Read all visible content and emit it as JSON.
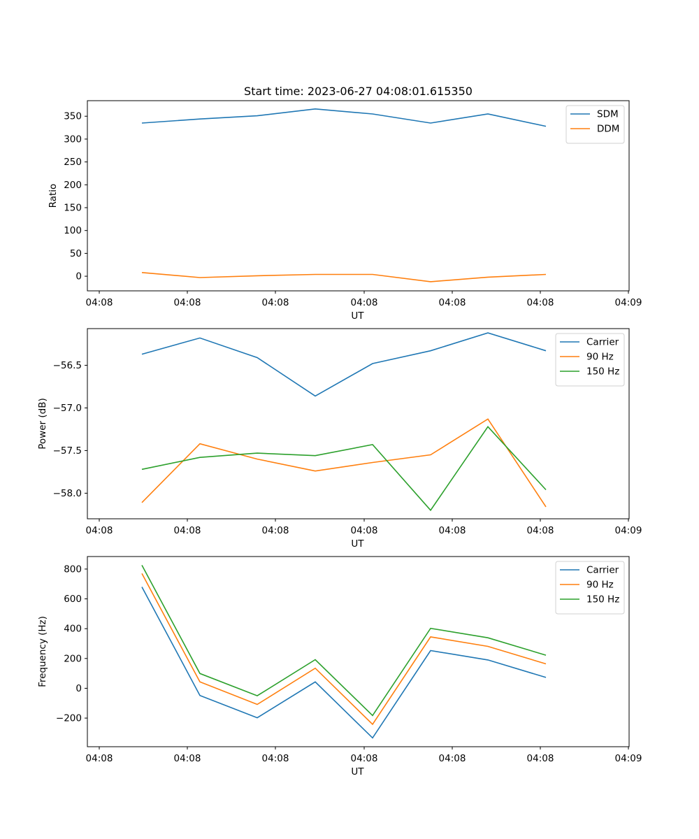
{
  "chart_data": [
    {
      "type": "line",
      "title": "Start time: 2023-06-27 04:08:01.615350",
      "xlabel": "UT",
      "ylabel": "Ratio",
      "x_ticks": [
        "04:08",
        "04:08",
        "04:08",
        "04:08",
        "04:08",
        "04:08",
        "04:09"
      ],
      "ylim": [
        -32,
        384
      ],
      "y_ticks": [
        0,
        50,
        100,
        150,
        200,
        250,
        300,
        350
      ],
      "legend_position": "top-right",
      "series": [
        {
          "name": "SDM",
          "color": "#1f77b4",
          "values": [
            335,
            344,
            351,
            366,
            355,
            335,
            355,
            328
          ]
        },
        {
          "name": "DDM",
          "color": "#ff7f0e",
          "values": [
            8,
            -3,
            1,
            4,
            4,
            -12,
            -2,
            4
          ]
        }
      ]
    },
    {
      "type": "line",
      "title": "",
      "xlabel": "UT",
      "ylabel": "Power (dB)",
      "x_ticks": [
        "04:08",
        "04:08",
        "04:08",
        "04:08",
        "04:08",
        "04:08",
        "04:09"
      ],
      "ylim": [
        -58.3,
        -56.07
      ],
      "y_ticks": [
        -58.0,
        -57.5,
        -57.0,
        -56.5
      ],
      "legend_position": "top-right",
      "series": [
        {
          "name": "Carrier",
          "color": "#1f77b4",
          "values": [
            -56.37,
            -56.18,
            -56.41,
            -56.86,
            -56.48,
            -56.33,
            -56.12,
            -56.33
          ]
        },
        {
          "name": "90 Hz",
          "color": "#ff7f0e",
          "values": [
            -58.11,
            -57.42,
            -57.6,
            -57.74,
            -57.64,
            -57.55,
            -57.13,
            -58.16
          ]
        },
        {
          "name": "150 Hz",
          "color": "#2ca02c",
          "values": [
            -57.72,
            -57.58,
            -57.53,
            -57.56,
            -57.43,
            -58.2,
            -57.22,
            -57.96
          ]
        }
      ]
    },
    {
      "type": "line",
      "title": "",
      "xlabel": "UT",
      "ylabel": "Frequency (Hz)",
      "x_ticks": [
        "04:08",
        "04:08",
        "04:08",
        "04:08",
        "04:08",
        "04:08",
        "04:09"
      ],
      "ylim": [
        -392,
        884
      ],
      "y_ticks": [
        -200,
        0,
        200,
        400,
        600,
        800
      ],
      "legend_position": "top-right",
      "series": [
        {
          "name": "Carrier",
          "color": "#1f77b4",
          "values": [
            680,
            -48,
            -198,
            43,
            -333,
            253,
            190,
            73
          ]
        },
        {
          "name": "90 Hz",
          "color": "#ff7f0e",
          "values": [
            770,
            43,
            -108,
            135,
            -242,
            345,
            281,
            164
          ]
        },
        {
          "name": "150 Hz",
          "color": "#2ca02c",
          "values": [
            826,
            99,
            -50,
            192,
            -183,
            402,
            339,
            222
          ]
        }
      ]
    }
  ]
}
